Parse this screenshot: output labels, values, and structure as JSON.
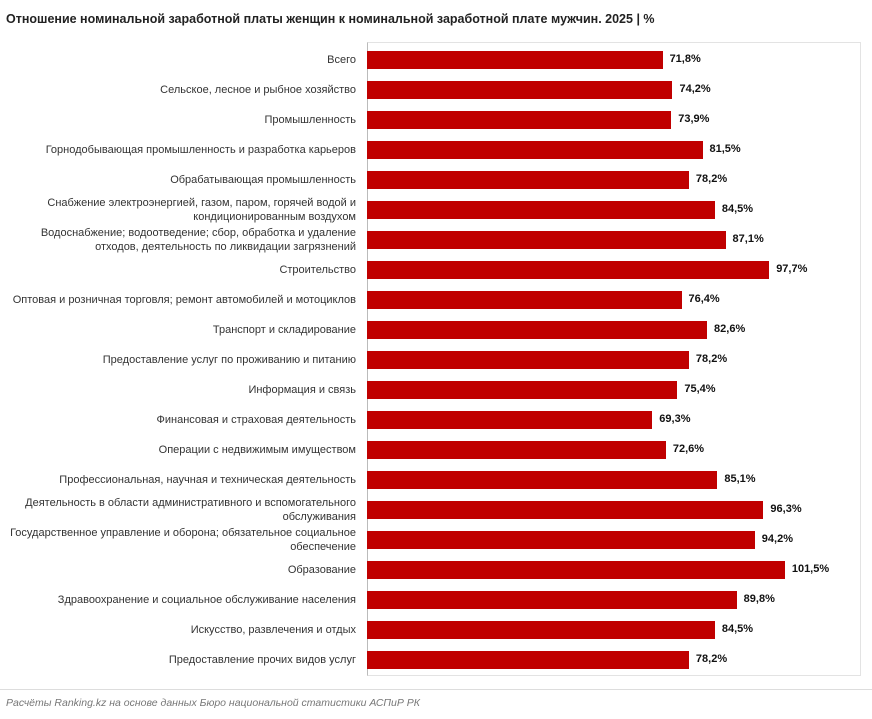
{
  "chart_data": {
    "type": "bar",
    "orientation": "horizontal",
    "title": "Отношение номинальной заработной платы женщин к номинальной заработной плате мужчин. 2025 | %",
    "categories": [
      "Всего",
      "Сельское, лесное и рыбное хозяйство",
      "Промышленность",
      "Горнодобывающая промышленность и разработка карьеров",
      "Обрабатывающая промышленность",
      "Снабжение электроэнергией, газом, паром, горячей водой и кондиционированным воздухом",
      "Водоснабжение; водоотведение; сбор, обработка и удаление отходов, деятельность по ликвидации загрязнений",
      "Строительство",
      "Оптовая и розничная торговля; ремонт автомобилей и мотоциклов",
      "Транспорт и складирование",
      "Предоставление услуг по проживанию и питанию",
      "Информация и связь",
      "Финансовая и страховая деятельность",
      "Операции с недвижимым имуществом",
      "Профессиональная, научная и техническая деятельность",
      "Деятельность в области административного и вспомогательного обслуживания",
      "Государственное управление и оборона; обязательное  социальное обеспечение",
      "Образование",
      "Здравоохранение и социальное обслуживание населения",
      "Искусство, развлечения и отдых",
      "Предоставление прочих видов услуг"
    ],
    "values": [
      71.8,
      74.2,
      73.9,
      81.5,
      78.2,
      84.5,
      87.1,
      97.7,
      76.4,
      82.6,
      78.2,
      75.4,
      69.3,
      72.6,
      85.1,
      96.3,
      94.2,
      101.5,
      89.8,
      84.5,
      78.2
    ],
    "value_labels": [
      "71,8%",
      "74,2%",
      "73,9%",
      "81,5%",
      "78,2%",
      "84,5%",
      "87,1%",
      "97,7%",
      "76,4%",
      "82,6%",
      "78,2%",
      "75,4%",
      "69,3%",
      "72,6%",
      "85,1%",
      "96,3%",
      "94,2%",
      "101,5%",
      "89,8%",
      "84,5%",
      "78,2%"
    ],
    "color": "#c00000",
    "xlim": [
      0,
      120
    ],
    "source": "Расчёты Ranking.kz на основе данных Бюро национальной статистики АСПиР РК"
  }
}
